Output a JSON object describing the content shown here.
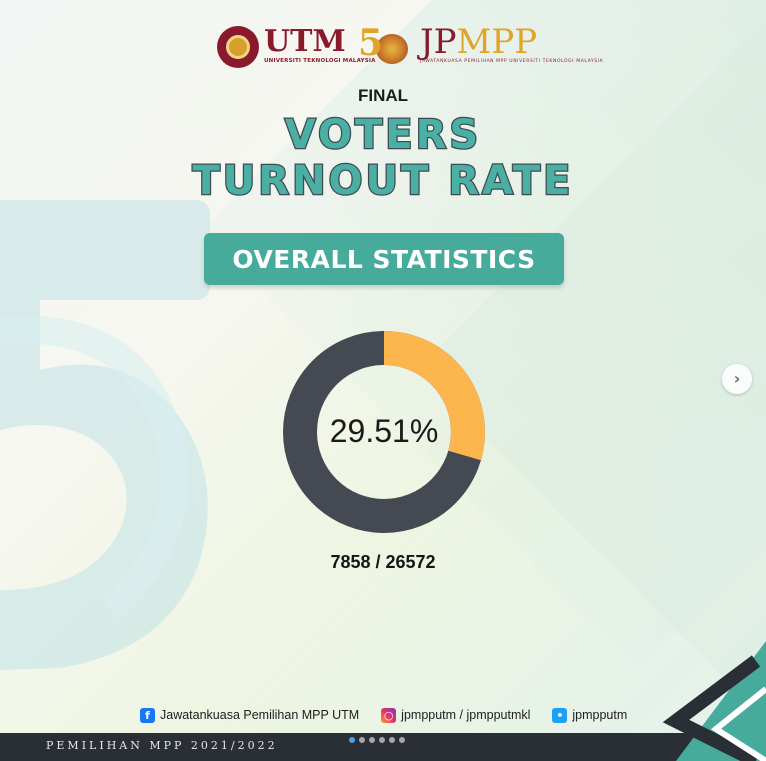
{
  "logos": {
    "utm_name": "UTM",
    "utm_subtitle": "UNIVERSITI TEKNOLOGI MALAYSIA",
    "anniversary_number": "5",
    "jpmpp_jp": "JP",
    "jpmpp_mpp": "MPP",
    "jpmpp_subtitle": "JAWATANKUASA PEMILIHAN MPP UNIVERSITI TEKNOLOGI MALAYSIA"
  },
  "header": {
    "final_label": "FINAL",
    "title_line_1": "VOTERS",
    "title_line_2": "TURNOUT RATE"
  },
  "stats_pill": {
    "label": "OVERALL STATISTICS"
  },
  "donut": {
    "percent_label": "29.51%",
    "fraction": 0.2951,
    "fill_color": "#fdb54e",
    "track_color": "#454a52"
  },
  "counts_label": "7858 / 26572",
  "socials": [
    {
      "icon": "facebook-icon",
      "label": "Jawatankuasa Pemilihan MPP UTM"
    },
    {
      "icon": "instagram-icon",
      "label": "jpmpputm / jpmpputmkl"
    },
    {
      "icon": "twitter-icon",
      "label": "jpmpputm"
    }
  ],
  "footer": {
    "text": "PEMILIHAN MPP 2021/2022"
  },
  "carousel": {
    "total_slides": 6,
    "active_index": 0,
    "next_icon": "chevron-right-icon"
  },
  "colors": {
    "accent_teal": "#46ab9b",
    "brand_maroon": "#8a1a2b",
    "brand_gold": "#e0a528"
  }
}
